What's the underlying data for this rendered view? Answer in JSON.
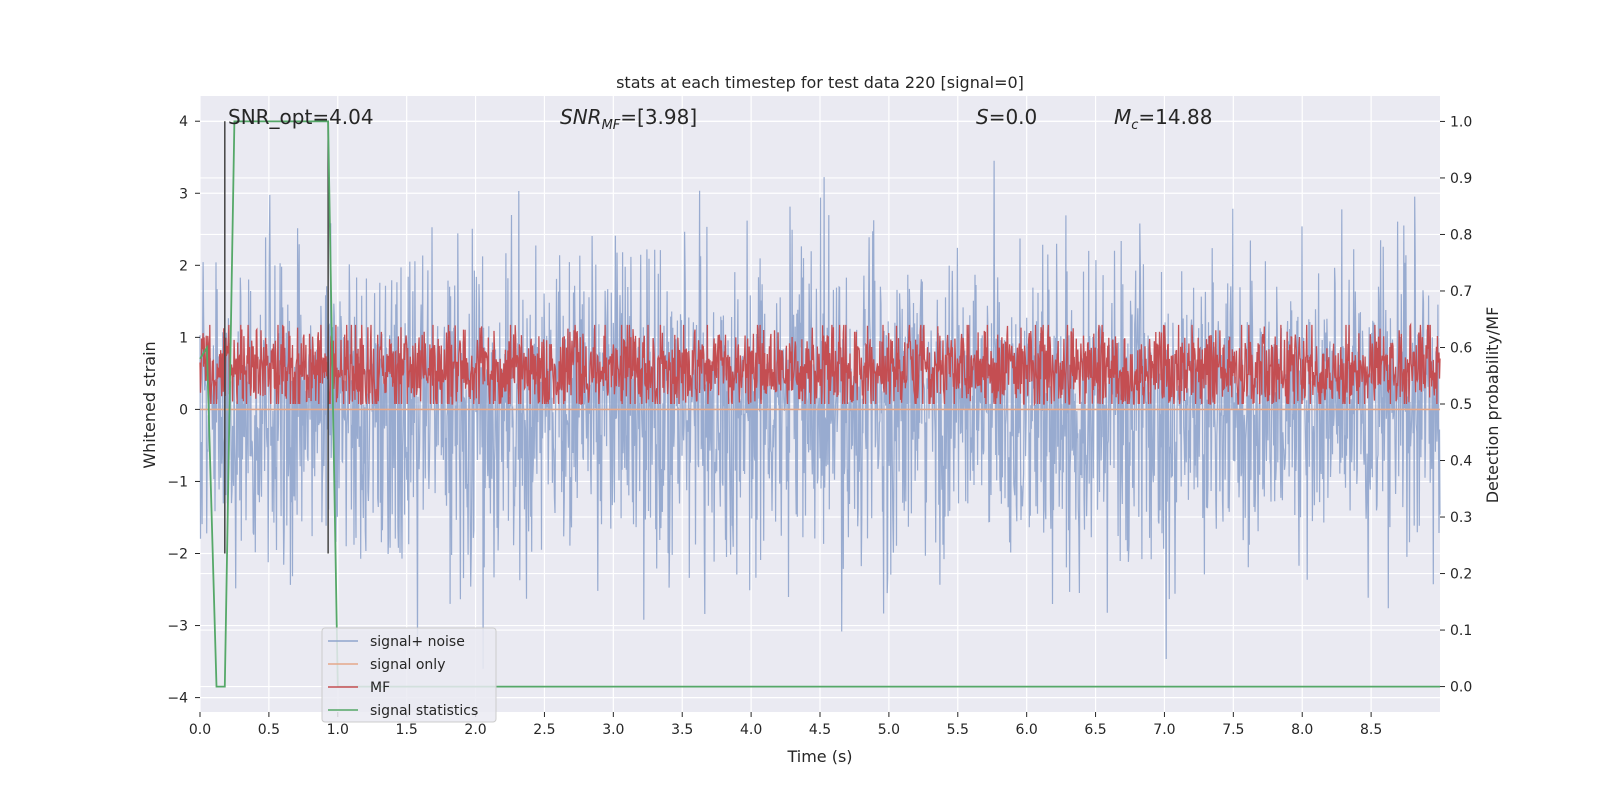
{
  "chart_data": {
    "type": "line",
    "title": "stats at each timestep for test data 220 [signal=0]",
    "xlabel": "Time (s)",
    "ylabel_left": "Whitened strain",
    "ylabel_right": "Detection probability/MF",
    "xlim": [
      0.0,
      9.0
    ],
    "ylim_left": [
      -4.2,
      4.35
    ],
    "ylim_right": [
      -0.045,
      1.045
    ],
    "x_ticks": [
      "0.0",
      "0.5",
      "1.0",
      "1.5",
      "2.0",
      "2.5",
      "3.0",
      "3.5",
      "4.0",
      "4.5",
      "5.0",
      "5.5",
      "6.0",
      "6.5",
      "7.0",
      "7.5",
      "8.0",
      "8.5"
    ],
    "y_left_ticks": [
      "4",
      "3",
      "2",
      "1",
      "0",
      "−1",
      "−2",
      "−3",
      "−4"
    ],
    "y_right_ticks": [
      "1.0",
      "0.9",
      "0.8",
      "0.7",
      "0.6",
      "0.5",
      "0.4",
      "0.3",
      "0.2",
      "0.1",
      "0.0"
    ],
    "grid": true,
    "legend_placement": "lower-left",
    "annotations": {
      "snr_opt": "SNR_opt=4.04",
      "snr_mf_label": "SNR",
      "snr_mf_sub": "MF",
      "snr_mf_value": "=[3.98]",
      "s_label": "S",
      "s_value": "=0.0",
      "mc_label": "M",
      "mc_sub": "c",
      "mc_value": "=14.88"
    },
    "vertical_markers_s": [
      0.18,
      0.93
    ],
    "series": [
      {
        "name": "signal+ noise",
        "axis": "left",
        "color": "#8fa4cc",
        "kind": "noise",
        "envelope_typical": [
          -1.7,
          1.7
        ],
        "extremes": [
          -3.6,
          3.45
        ]
      },
      {
        "name": "signal only",
        "axis": "left",
        "color": "#e5a889",
        "kind": "constant",
        "value": 0.0
      },
      {
        "name": "MF",
        "axis": "right",
        "color": "#c44e52",
        "kind": "noise",
        "range": [
          0.5,
          0.62
        ]
      },
      {
        "name": "signal statistics",
        "axis": "right",
        "color": "#55a868",
        "kind": "line",
        "x": [
          0.0,
          0.05,
          0.12,
          0.18,
          0.25,
          0.93,
          1.0,
          9.0
        ],
        "y": [
          0.58,
          0.6,
          0.0,
          0.0,
          1.0,
          1.0,
          0.0,
          0.0
        ]
      }
    ]
  }
}
